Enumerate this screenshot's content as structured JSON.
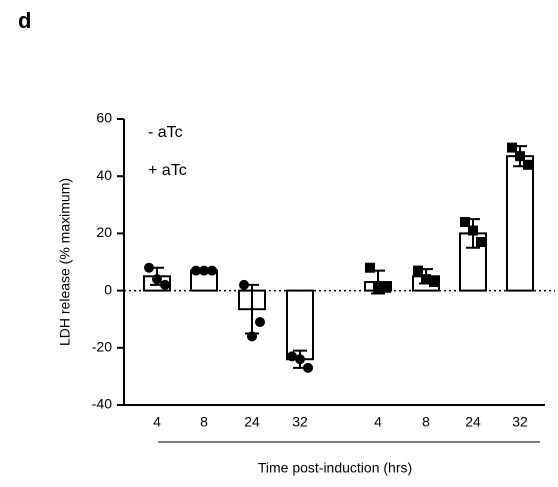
{
  "chart_data": {
    "type": "bar",
    "panel_label": "d",
    "y_label": "LDH release (% maximum)",
    "x_label": "Time post-induction (hrs)",
    "categories": [
      "4",
      "8",
      "24",
      "32"
    ],
    "ylim": [
      -40,
      60
    ],
    "yticks": [
      60,
      40,
      20,
      0,
      -20,
      -40
    ],
    "series": [
      {
        "name": "- aTc",
        "color": "#000000",
        "marker": "circle",
        "values": [
          5,
          7,
          -6.5,
          -24
        ],
        "errors": [
          3,
          0.5,
          8.5,
          3
        ],
        "points": [
          [
            8,
            2,
            4
          ],
          [
            7,
            7,
            7
          ],
          [
            2,
            -11,
            -16
          ],
          [
            -23,
            -27,
            -24
          ]
        ]
      },
      {
        "name": "+ aTc",
        "color": "#000000",
        "marker": "square",
        "values": [
          3,
          5,
          20,
          47
        ],
        "errors": [
          4,
          2.5,
          5,
          3.5
        ],
        "points": [
          [
            8,
            1,
            1
          ],
          [
            7,
            3,
            4
          ],
          [
            24,
            17,
            21
          ],
          [
            50,
            44,
            47
          ]
        ]
      }
    ]
  }
}
